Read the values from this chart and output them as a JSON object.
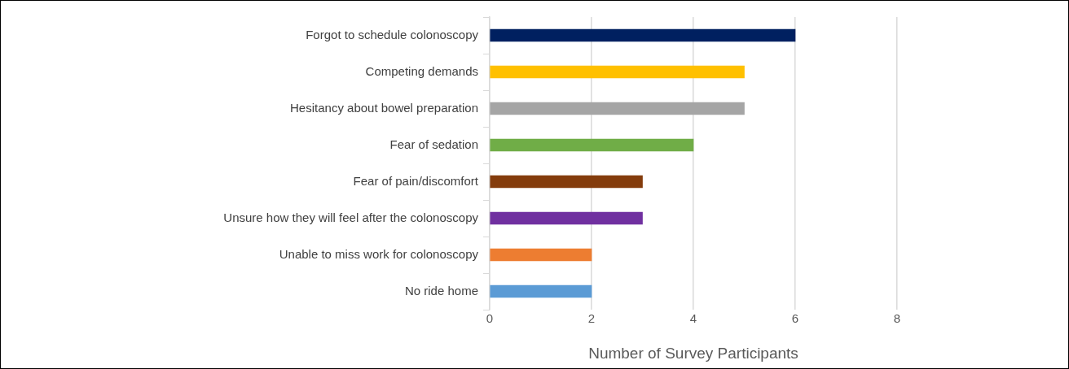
{
  "chart_data": {
    "type": "bar",
    "orientation": "horizontal",
    "xlabel": "Number of Survey Participants",
    "categories": [
      "Forgot to schedule colonoscopy",
      "Competing demands",
      "Hesitancy about bowel preparation",
      "Fear of sedation",
      "Fear of pain/discomfort",
      "Unsure how they will feel after the colonoscopy",
      "Unable to miss work for colonoscopy",
      "No ride home"
    ],
    "values": [
      6,
      5,
      5,
      4,
      3,
      3,
      2,
      2
    ],
    "colors": [
      "#002060",
      "#ffc000",
      "#a5a5a5",
      "#70ad47",
      "#843c0c",
      "#7030a0",
      "#ed7d31",
      "#5b9bd5"
    ],
    "xlim": [
      0,
      8
    ],
    "xticks": [
      0,
      2,
      4,
      6,
      8
    ],
    "grid": "x",
    "legend": false
  }
}
